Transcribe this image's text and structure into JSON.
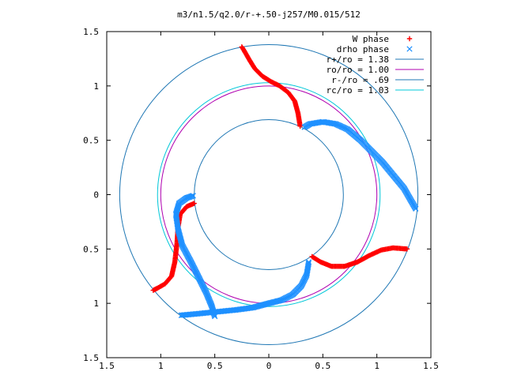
{
  "chart_data": {
    "type": "scatter",
    "title": "m3/n1.5/q2.0/r-+.50-j257/M0.015/512",
    "xlabel": "",
    "ylabel": "",
    "xlim": [
      -1.5,
      1.5
    ],
    "ylim": [
      -1.5,
      1.5
    ],
    "xticks": [
      -1.5,
      -1,
      -0.5,
      0,
      0.5,
      1,
      1.5
    ],
    "xtick_labels": [
      "1.5",
      "1",
      "0.5",
      "0",
      "0.5",
      "1",
      "1.5"
    ],
    "yticks": [
      1.5,
      1,
      0.5,
      0,
      -0.5,
      -1,
      -1.5
    ],
    "ytick_labels": [
      "1.5",
      "1",
      "0.5",
      "0",
      "0.5",
      "1",
      "1.5"
    ],
    "grid": false,
    "legend_position": "top-right",
    "series": [
      {
        "name": "W phase",
        "kind": "points",
        "marker": "+",
        "color": "#ff0000",
        "arms": [
          [
            [
              0.29,
              0.63
            ],
            [
              0.27,
              0.75
            ],
            [
              0.24,
              0.86
            ],
            [
              0.18,
              0.94
            ],
            [
              0.1,
              1.0
            ],
            [
              0.02,
              1.04
            ],
            [
              -0.06,
              1.09
            ],
            [
              -0.13,
              1.16
            ],
            [
              -0.18,
              1.24
            ],
            [
              -0.22,
              1.31
            ],
            [
              -0.25,
              1.36
            ]
          ],
          [
            [
              0.4,
              -0.57
            ],
            [
              0.48,
              -0.62
            ],
            [
              0.58,
              -0.66
            ],
            [
              0.7,
              -0.66
            ],
            [
              0.82,
              -0.62
            ],
            [
              0.93,
              -0.56
            ],
            [
              1.04,
              -0.51
            ],
            [
              1.15,
              -0.49
            ],
            [
              1.28,
              -0.5
            ]
          ],
          [
            [
              -0.69,
              -0.08
            ],
            [
              -0.76,
              -0.11
            ],
            [
              -0.82,
              -0.18
            ],
            [
              -0.84,
              -0.3
            ],
            [
              -0.85,
              -0.45
            ],
            [
              -0.87,
              -0.62
            ],
            [
              -0.9,
              -0.75
            ],
            [
              -0.96,
              -0.82
            ],
            [
              -1.03,
              -0.86
            ],
            [
              -1.07,
              -0.88
            ]
          ]
        ]
      },
      {
        "name": "drho phase",
        "kind": "points",
        "marker": "x",
        "color": "#1e90ff",
        "arms": [
          [
            [
              0.33,
              0.62
            ],
            [
              0.38,
              0.65
            ],
            [
              0.5,
              0.67
            ],
            [
              0.62,
              0.65
            ],
            [
              0.73,
              0.6
            ],
            [
              0.85,
              0.5
            ],
            [
              0.95,
              0.4
            ],
            [
              1.05,
              0.3
            ],
            [
              1.15,
              0.18
            ],
            [
              1.25,
              0.06
            ],
            [
              1.36,
              -0.13
            ]
          ],
          [
            [
              0.37,
              -0.62
            ],
            [
              0.35,
              -0.74
            ],
            [
              0.3,
              -0.84
            ],
            [
              0.22,
              -0.92
            ],
            [
              0.12,
              -0.97
            ],
            [
              0.0,
              -1.0
            ],
            [
              -0.15,
              -1.04
            ],
            [
              -0.3,
              -1.06
            ],
            [
              -0.5,
              -1.08
            ],
            [
              -0.7,
              -1.1
            ],
            [
              -0.81,
              -1.11
            ]
          ],
          [
            [
              -0.7,
              -0.01
            ],
            [
              -0.76,
              -0.03
            ],
            [
              -0.83,
              -0.08
            ],
            [
              -0.86,
              -0.18
            ],
            [
              -0.84,
              -0.32
            ],
            [
              -0.8,
              -0.47
            ],
            [
              -0.72,
              -0.62
            ],
            [
              -0.65,
              -0.76
            ],
            [
              -0.58,
              -0.9
            ],
            [
              -0.53,
              -1.02
            ],
            [
              -0.5,
              -1.12
            ]
          ]
        ]
      },
      {
        "name": "r+/ro = 1.38",
        "kind": "circle",
        "radius": 1.38,
        "color": "#1f77b4"
      },
      {
        "name": "ro/ro = 1.00",
        "kind": "circle",
        "radius": 1.0,
        "color": "#b000b0"
      },
      {
        "name": "r-/ro = .69",
        "kind": "circle",
        "radius": 0.69,
        "color": "#1f77b4"
      },
      {
        "name": "rc/ro = 1.03",
        "kind": "circle",
        "radius": 1.03,
        "color": "#00c8d8"
      }
    ]
  }
}
